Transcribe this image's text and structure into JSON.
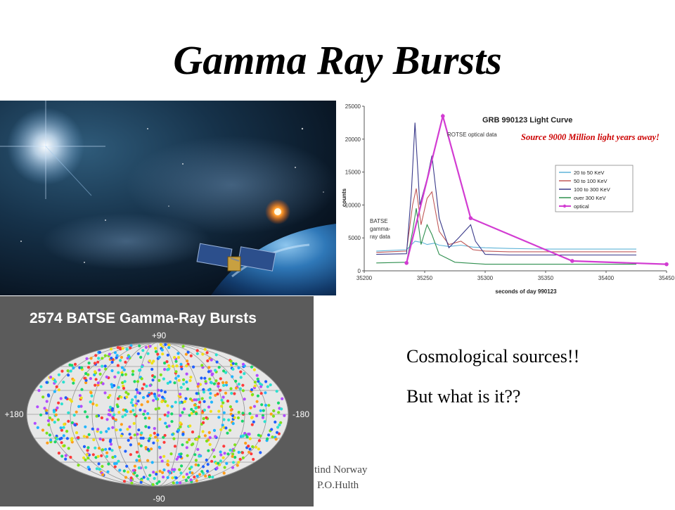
{
  "slide": {
    "title": "Gamma Ray Bursts"
  },
  "light_curve": {
    "title": "GRB 990123 Light Curve",
    "annotation": "Source 9000 Million light years away!",
    "rotse_label": "ROTSE optical data",
    "batse_label": [
      "BATSE",
      "gamma-",
      "ray data"
    ],
    "ylabel": "counts",
    "xlabel": "seconds of day 990123",
    "xticks": [
      "35200",
      "35250",
      "35300",
      "35350",
      "35400",
      "35450"
    ],
    "yticks": [
      "0",
      "5000",
      "10000",
      "15000",
      "20000",
      "25000"
    ],
    "legend": [
      {
        "label": "20 to 50 KeV",
        "color": "#5fb4d8"
      },
      {
        "label": "50 to 100 KeV",
        "color": "#c05858"
      },
      {
        "label": "100 to 300 KeV",
        "color": "#3a3a8a"
      },
      {
        "label": "over 300 KeV",
        "color": "#2f8f4f"
      },
      {
        "label": "optical",
        "color": "#d23cd2"
      }
    ]
  },
  "chart_data": {
    "type": "line",
    "title": "GRB 990123 Light Curve",
    "xlabel": "seconds of day 990123",
    "ylabel": "counts",
    "xlim": [
      35200,
      35450
    ],
    "ylim": [
      0,
      25000
    ],
    "series": [
      {
        "name": "20 to 50 KeV",
        "x": [
          35210,
          35235,
          35242,
          35248,
          35252,
          35258,
          35262,
          35270,
          35280,
          35290,
          35300,
          35320,
          35350,
          35400,
          35425
        ],
        "y": [
          3000,
          3200,
          4500,
          4300,
          4000,
          4200,
          3900,
          3700,
          3900,
          3600,
          3500,
          3400,
          3300,
          3300,
          3300
        ]
      },
      {
        "name": "50 to 100 KeV",
        "x": [
          35210,
          35235,
          35240,
          35243,
          35247,
          35252,
          35256,
          35262,
          35270,
          35280,
          35290,
          35300,
          35320,
          35350,
          35400,
          35425
        ],
        "y": [
          2800,
          3000,
          10000,
          12500,
          7000,
          11000,
          12000,
          6000,
          4000,
          4500,
          3200,
          3000,
          2900,
          2900,
          2900,
          2900
        ]
      },
      {
        "name": "100 to 300 KeV",
        "x": [
          35210,
          35235,
          35239,
          35242,
          35246,
          35252,
          35256,
          35262,
          35270,
          35278,
          35288,
          35292,
          35300,
          35320,
          35350,
          35400,
          35425
        ],
        "y": [
          2500,
          2600,
          12000,
          22500,
          10000,
          14000,
          17500,
          8000,
          3500,
          5000,
          7000,
          4500,
          2500,
          2400,
          2400,
          2400,
          2400
        ]
      },
      {
        "name": "over 300 KeV",
        "x": [
          35210,
          35235,
          35240,
          35243,
          35247,
          35252,
          35256,
          35262,
          35275,
          35300,
          35350,
          35400,
          35425
        ],
        "y": [
          1200,
          1300,
          6000,
          9500,
          4000,
          7000,
          5500,
          2500,
          1300,
          1000,
          1000,
          1000,
          1000
        ]
      },
      {
        "name": "optical",
        "x": [
          35235,
          35265,
          35288,
          35372,
          35450
        ],
        "y": [
          1200,
          23500,
          8000,
          1500,
          1000
        ]
      }
    ]
  },
  "skymap": {
    "title": "2574 BATSE Gamma-Ray Bursts",
    "label_top": "+90",
    "label_bottom": "-90",
    "label_left": "+180",
    "label_right": "-180",
    "burst_count": 2574
  },
  "text": {
    "line1": "Cosmological sources!!",
    "line2": "But what is it??"
  },
  "footer": {
    "line1": "tind Norway",
    "line2": "P.O.Hulth"
  },
  "colors": {
    "accent_annotation": "#cc0000",
    "optical": "#d23cd2",
    "skymap_bg": "#5b5b5b"
  }
}
